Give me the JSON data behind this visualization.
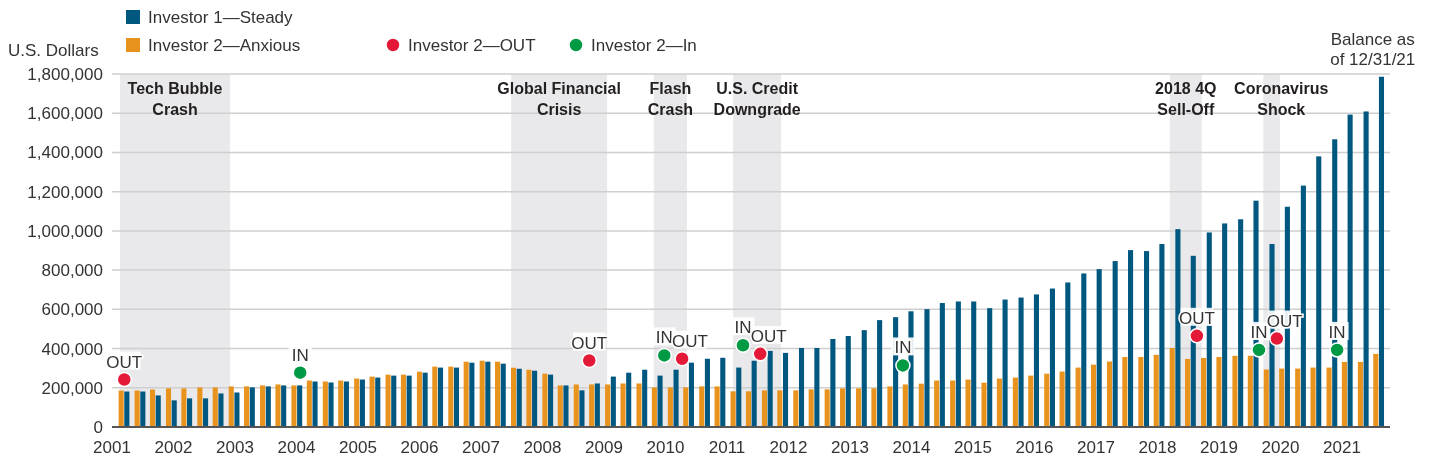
{
  "chart_data": {
    "type": "bar",
    "ylabel": "U.S. Dollars",
    "legend": "top left",
    "grid": "y",
    "xlim": [
      2001,
      2021.78
    ],
    "xticks": [
      2001,
      2002,
      2003,
      2004,
      2005,
      2006,
      2007,
      2008,
      2009,
      2010,
      2011,
      2012,
      2013,
      2014,
      2015,
      2016,
      2017,
      2018,
      2019,
      2020,
      2021
    ],
    "ylim": [
      0,
      1800000
    ],
    "yticks": [
      {
        "value": 0,
        "label": "0"
      },
      {
        "value": 200000,
        "label": "200,000"
      },
      {
        "value": 400000,
        "label": "400,000"
      },
      {
        "value": 600000,
        "label": "600,000"
      },
      {
        "value": 800000,
        "label": "800,000"
      },
      {
        "value": 1000000,
        "label": "1,000,000"
      },
      {
        "value": 1200000,
        "label": "1,200,000"
      },
      {
        "value": 1400000,
        "label": "1,400,000"
      },
      {
        "value": 1600000,
        "label": "1,600,000"
      },
      {
        "value": 1800000,
        "label": "1,800,000"
      }
    ],
    "x": [
      2001.2,
      2001.46,
      2001.71,
      2001.97,
      2002.22,
      2002.48,
      2002.73,
      2002.99,
      2003.24,
      2003.5,
      2003.75,
      2004.01,
      2004.26,
      2004.52,
      2004.77,
      2005.03,
      2005.28,
      2005.54,
      2005.79,
      2006.05,
      2006.3,
      2006.56,
      2006.81,
      2007.07,
      2007.32,
      2007.58,
      2007.83,
      2008.09,
      2008.34,
      2008.6,
      2008.85,
      2009.11,
      2009.36,
      2009.62,
      2009.87,
      2010.13,
      2010.38,
      2010.64,
      2010.89,
      2011.15,
      2011.4,
      2011.66,
      2011.91,
      2012.17,
      2012.42,
      2012.68,
      2012.93,
      2013.19,
      2013.44,
      2013.7,
      2013.95,
      2014.21,
      2014.46,
      2014.72,
      2014.97,
      2015.23,
      2015.48,
      2015.74,
      2015.99,
      2016.25,
      2016.5,
      2016.76,
      2017.01,
      2017.27,
      2017.52,
      2017.78,
      2018.03,
      2018.29,
      2018.54,
      2018.8,
      2019.05,
      2019.31,
      2019.56,
      2019.82,
      2020.07,
      2020.33,
      2020.58,
      2020.84,
      2021.09,
      2021.35,
      2021.6
    ],
    "series": [
      {
        "name": "Investor 1—Steady",
        "color": "#00577f",
        "values": [
          181000,
          181000,
          161000,
          136000,
          146000,
          146000,
          171000,
          176000,
          202000,
          207000,
          212000,
          212000,
          232000,
          227000,
          232000,
          242000,
          252000,
          262000,
          262000,
          277000,
          303000,
          303000,
          328000,
          333000,
          323000,
          297000,
          287000,
          267000,
          212000,
          187000,
          222000,
          257000,
          277000,
          292000,
          262000,
          292000,
          328000,
          348000,
          353000,
          303000,
          338000,
          388000,
          378000,
          403000,
          403000,
          449000,
          464000,
          494000,
          545000,
          560000,
          590000,
          601000,
          632000,
          640000,
          640000,
          606000,
          650000,
          660000,
          676000,
          706000,
          737000,
          783000,
          805000,
          846000,
          902000,
          897000,
          933000,
          1009000,
          873000,
          992000,
          1038000,
          1059000,
          1154000,
          933000,
          1123000,
          1231000,
          1380000,
          1467000,
          1593000,
          1609000,
          1786000
        ]
      },
      {
        "name": "Investor 2—Anxious",
        "color": "#e8931e",
        "values": [
          186000,
          186000,
          191000,
          197000,
          197000,
          202000,
          202000,
          207000,
          207000,
          212000,
          217000,
          212000,
          237000,
          232000,
          237000,
          247000,
          257000,
          267000,
          267000,
          282000,
          308000,
          308000,
          333000,
          338000,
          333000,
          302000,
          292000,
          272000,
          212000,
          217000,
          217000,
          217000,
          222000,
          222000,
          202000,
          202000,
          202000,
          207000,
          207000,
          182000,
          182000,
          187000,
          187000,
          187000,
          192000,
          192000,
          197000,
          197000,
          197000,
          207000,
          217000,
          221000,
          237000,
          237000,
          242000,
          226000,
          247000,
          252000,
          262000,
          272000,
          283000,
          303000,
          318000,
          334000,
          357000,
          357000,
          368000,
          403000,
          347000,
          352000,
          357000,
          363000,
          363000,
          293000,
          298000,
          298000,
          303000,
          303000,
          332000,
          332000,
          373000
        ]
      },
      {
        "name": "Investor 2—OUT",
        "type": "scatter",
        "marker": "circle",
        "color": "#e31937",
        "x": [
          2001.2,
          2008.76,
          2010.27,
          2011.54,
          2018.64,
          2019.94
        ],
        "values": [
          242000,
          339000,
          348000,
          373000,
          465000,
          451000
        ]
      },
      {
        "name": "Investor 2—In",
        "type": "scatter",
        "marker": "circle",
        "color": "#009a44",
        "x": [
          2004.06,
          2009.98,
          2011.26,
          2013.86,
          2019.65,
          2020.92
        ],
        "values": [
          277000,
          365000,
          417000,
          314000,
          393000,
          393000
        ]
      }
    ],
    "bands": [
      {
        "axis": "x",
        "from": 2001.13,
        "to": 2002.92,
        "label": "Tech Bubble Crash",
        "color": "#e9e9eb"
      },
      {
        "axis": "x",
        "from": 2007.49,
        "to": 2009.05,
        "label": "Global Financial Crisis",
        "color": "#e9e9eb"
      },
      {
        "axis": "x",
        "from": 2009.81,
        "to": 2010.35,
        "label": "Flash Crash",
        "color": "#e9e9eb"
      },
      {
        "axis": "x",
        "from": 2011.1,
        "to": 2011.88,
        "label": "U.S. Credit Downgrade",
        "color": "#e9e9eb"
      },
      {
        "axis": "x",
        "from": 2018.2,
        "to": 2018.72,
        "label": "2018 4Q Sell-Off",
        "color": "#e9e9eb"
      },
      {
        "axis": "x",
        "from": 2019.72,
        "to": 2019.99,
        "label": "Coronavirus Shock",
        "color": "#e9e9eb"
      }
    ],
    "annotations": [
      {
        "text": "OUT",
        "x": 2001.2,
        "y": 242000
      },
      {
        "text": "IN",
        "x": 2004.06,
        "y": 277000
      },
      {
        "text": "OUT",
        "x": 2008.76,
        "y": 339000
      },
      {
        "text": "IN",
        "x": 2009.98,
        "y": 365000
      },
      {
        "text": "OUT",
        "x": 2010.27,
        "y": 348000
      },
      {
        "text": "IN",
        "x": 2011.26,
        "y": 417000
      },
      {
        "text": "OUT",
        "x": 2011.54,
        "y": 373000
      },
      {
        "text": "IN",
        "x": 2013.86,
        "y": 314000
      },
      {
        "text": "OUT",
        "x": 2018.64,
        "y": 465000
      },
      {
        "text": "IN",
        "x": 2019.65,
        "y": 393000
      },
      {
        "text": "OUT",
        "x": 2019.94,
        "y": 451000
      },
      {
        "text": "IN",
        "x": 2020.92,
        "y": 393000
      },
      {
        "text": "Balance as of 12/31/21",
        "x": 2021.6,
        "y": 1786000
      }
    ]
  }
}
